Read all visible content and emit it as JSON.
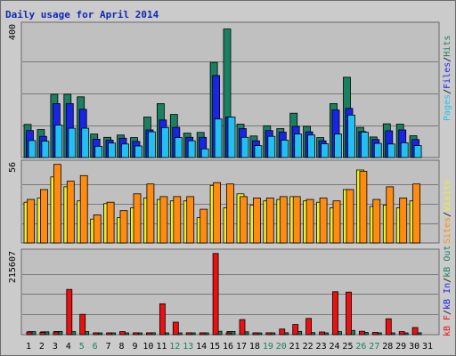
{
  "title": "Daily usage for April 2014",
  "colors": {
    "hits": "#1a8060",
    "files": "#1a24e6",
    "pages": "#22c0f2",
    "visits": "#f0f020",
    "sites": "#ff8c10",
    "kbin": "#1a24e6",
    "kbout": "#1a8060",
    "kbf": "#ee1010",
    "weekend": "#1a8060",
    "weekday": "#000000",
    "titleColor": "#0f28b4",
    "panel": "#c0c0c0"
  },
  "chart_data": [
    {
      "type": "bar",
      "name": "hits-files-pages",
      "ylabel_top": "400",
      "legend": [
        "Pages",
        "Files",
        "Hits"
      ],
      "ylim": [
        0,
        400
      ],
      "x": [
        1,
        2,
        3,
        4,
        5,
        6,
        7,
        8,
        9,
        10,
        11,
        12,
        13,
        14,
        15,
        16,
        17,
        18,
        19,
        20,
        21,
        22,
        23,
        24,
        25,
        26,
        27,
        28,
        29,
        30,
        31
      ],
      "series": [
        {
          "name": "Hits",
          "values": [
            103,
            87,
            197,
            197,
            189,
            73,
            63,
            70,
            62,
            126,
            168,
            134,
            76,
            78,
            296,
            400,
            104,
            67,
            99,
            90,
            138,
            97,
            62,
            168,
            250,
            94,
            64,
            105,
            104,
            68,
            0
          ]
        },
        {
          "name": "Files",
          "values": [
            84,
            66,
            168,
            168,
            150,
            57,
            54,
            60,
            50,
            86,
            117,
            94,
            63,
            63,
            255,
            126,
            90,
            52,
            84,
            79,
            97,
            80,
            52,
            148,
            153,
            81,
            56,
            83,
            86,
            56,
            0
          ]
        },
        {
          "name": "Pages",
          "values": [
            53,
            51,
            101,
            91,
            91,
            35,
            45,
            42,
            36,
            80,
            93,
            62,
            52,
            27,
            120,
            126,
            63,
            37,
            66,
            54,
            73,
            70,
            43,
            73,
            132,
            79,
            44,
            42,
            46,
            37,
            0
          ]
        }
      ]
    },
    {
      "type": "bar",
      "name": "visits-sites",
      "ylabel_top": "56",
      "legend": [
        "Sites",
        "Visits"
      ],
      "ylim": [
        0,
        56
      ],
      "x": [
        1,
        2,
        3,
        4,
        5,
        6,
        7,
        8,
        9,
        10,
        11,
        12,
        13,
        14,
        15,
        16,
        17,
        18,
        19,
        20,
        21,
        22,
        23,
        24,
        25,
        26,
        27,
        28,
        29,
        30,
        31
      ],
      "series": [
        {
          "name": "Visits",
          "values": [
            29,
            32,
            47,
            40,
            30,
            17,
            28,
            18,
            25,
            32,
            31,
            30,
            30,
            18,
            41,
            25,
            35,
            27,
            30,
            31,
            33,
            30,
            29,
            25,
            38,
            52,
            26,
            27,
            25,
            30,
            0
          ]
        },
        {
          "name": "Sites",
          "values": [
            31,
            38,
            56,
            44,
            48,
            20,
            29,
            23,
            35,
            42,
            33,
            33,
            33,
            24,
            43,
            42,
            33,
            32,
            32,
            33,
            33,
            31,
            32,
            30,
            38,
            51,
            31,
            40,
            32,
            42,
            0
          ]
        }
      ]
    },
    {
      "type": "bar",
      "name": "kbf-kbin-kbout",
      "ylabel_top": "215607",
      "legend": [
        "kB F",
        "kB In",
        "kB Out"
      ],
      "ylim": [
        0,
        215607
      ],
      "x": [
        1,
        2,
        3,
        4,
        5,
        6,
        7,
        8,
        9,
        10,
        11,
        12,
        13,
        14,
        15,
        16,
        17,
        18,
        19,
        20,
        21,
        22,
        23,
        24,
        25,
        26,
        27,
        28,
        29,
        30,
        31
      ],
      "series": [
        {
          "name": "kB F",
          "values": [
            7000,
            6000,
            7000,
            120000,
            54000,
            3000,
            4000,
            8000,
            5000,
            3000,
            82000,
            33000,
            5000,
            4000,
            215607,
            4000,
            40000,
            4000,
            5000,
            15000,
            27000,
            43000,
            7000,
            114000,
            113000,
            9000,
            6000,
            42000,
            8000,
            19000,
            0
          ]
        },
        {
          "name": "kB In",
          "values": [
            0,
            0,
            0,
            0,
            0,
            0,
            0,
            0,
            0,
            0,
            0,
            0,
            0,
            0,
            0,
            0,
            0,
            0,
            0,
            0,
            0,
            0,
            0,
            0,
            0,
            0,
            0,
            0,
            0,
            0,
            0
          ]
        },
        {
          "name": "kB Out",
          "values": [
            8000,
            7500,
            8500,
            8000,
            8000,
            3000,
            3000,
            3500,
            3000,
            5000,
            4000,
            4500,
            3500,
            3000,
            9000,
            8500,
            7500,
            3000,
            4000,
            5000,
            8500,
            5500,
            4500,
            8000,
            11000,
            6000,
            3500,
            4500,
            4500,
            5000,
            0
          ]
        }
      ]
    }
  ],
  "weekend_days": [
    5,
    6,
    12,
    13,
    19,
    20,
    26,
    27
  ]
}
